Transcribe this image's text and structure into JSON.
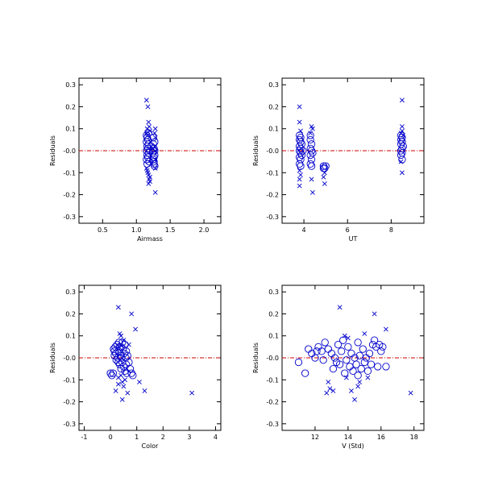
{
  "marker_color": "#0000cc",
  "zero_line_color": "#cc0000",
  "chart_data": [
    {
      "type": "scatter",
      "xlabel": "Airmass",
      "ylabel": "Residuals",
      "xlim": [
        0.15,
        2.25
      ],
      "ylim": [
        -0.33,
        0.33
      ],
      "xticks": [
        0.5,
        1.0,
        1.5,
        2.0
      ],
      "xtick_labels": [
        "0.5",
        "1.0",
        "1.5",
        "2.0"
      ],
      "yticks": [
        -0.3,
        -0.2,
        -0.1,
        0.0,
        0.1,
        0.2,
        0.3
      ],
      "ytick_labels": [
        "-0.3",
        "-0.2",
        "-0.1",
        "-0.0",
        "0.1",
        "0.2",
        "0.3"
      ],
      "series": [
        {
          "marker": "circle",
          "points": [
            [
              1.15,
              0.07
            ],
            [
              1.16,
              0.06
            ],
            [
              1.17,
              0.05
            ],
            [
              1.15,
              0.04
            ],
            [
              1.18,
              0.03
            ],
            [
              1.16,
              0.02
            ],
            [
              1.17,
              0.01
            ],
            [
              1.15,
              0.0
            ],
            [
              1.18,
              -0.01
            ],
            [
              1.16,
              -0.02
            ],
            [
              1.17,
              -0.03
            ],
            [
              1.15,
              -0.04
            ],
            [
              1.19,
              -0.05
            ],
            [
              1.16,
              -0.06
            ],
            [
              1.18,
              0.08
            ],
            [
              1.2,
              0.0
            ],
            [
              1.22,
              0.02
            ],
            [
              1.24,
              -0.01
            ],
            [
              1.25,
              0.0
            ],
            [
              1.25,
              0.03
            ],
            [
              1.26,
              -0.03
            ],
            [
              1.27,
              0.04
            ],
            [
              1.26,
              -0.05
            ],
            [
              1.27,
              -0.07
            ],
            [
              1.25,
              -0.04
            ],
            [
              1.26,
              0.01
            ],
            [
              1.27,
              -0.02
            ],
            [
              1.25,
              0.06
            ],
            [
              1.26,
              -0.06
            ],
            [
              1.27,
              0.0
            ]
          ]
        },
        {
          "marker": "x",
          "points": [
            [
              1.15,
              0.23
            ],
            [
              1.17,
              0.2
            ],
            [
              1.18,
              0.13
            ],
            [
              1.19,
              0.11
            ],
            [
              1.16,
              0.1
            ],
            [
              1.15,
              0.08
            ],
            [
              1.17,
              0.07
            ],
            [
              1.15,
              -0.08
            ],
            [
              1.16,
              -0.09
            ],
            [
              1.17,
              -0.1
            ],
            [
              1.18,
              -0.11
            ],
            [
              1.2,
              -0.12
            ],
            [
              1.18,
              -0.15
            ],
            [
              1.2,
              -0.14
            ],
            [
              1.28,
              -0.19
            ],
            [
              1.28,
              0.1
            ],
            [
              1.27,
              0.08
            ],
            [
              1.28,
              0.06
            ],
            [
              1.28,
              -0.08
            ],
            [
              1.27,
              0.02
            ],
            [
              1.28,
              -0.04
            ],
            [
              1.19,
              -0.13
            ],
            [
              1.2,
              0.09
            ],
            [
              1.22,
              -0.06
            ],
            [
              1.28,
              0.0
            ]
          ]
        }
      ]
    },
    {
      "type": "scatter",
      "xlabel": "UT",
      "ylabel": "Residuals",
      "xlim": [
        3.0,
        9.5
      ],
      "ylim": [
        -0.33,
        0.33
      ],
      "xticks": [
        4,
        6,
        8
      ],
      "xtick_labels": [
        "4",
        "6",
        "8"
      ],
      "yticks": [
        -0.3,
        -0.2,
        -0.1,
        0.0,
        0.1,
        0.2,
        0.3
      ],
      "ytick_labels": [
        "-0.3",
        "-0.2",
        "-0.1",
        "-0.0",
        "0.1",
        "0.2",
        "0.3"
      ],
      "series": [
        {
          "marker": "circle",
          "points": [
            [
              3.8,
              0.07
            ],
            [
              3.85,
              0.06
            ],
            [
              3.8,
              0.05
            ],
            [
              3.85,
              0.04
            ],
            [
              3.8,
              0.02
            ],
            [
              3.85,
              0.01
            ],
            [
              3.8,
              0.0
            ],
            [
              3.85,
              -0.01
            ],
            [
              3.8,
              -0.03
            ],
            [
              3.85,
              -0.04
            ],
            [
              3.8,
              -0.06
            ],
            [
              3.85,
              -0.07
            ],
            [
              3.9,
              0.03
            ],
            [
              3.9,
              -0.02
            ],
            [
              3.95,
              0.0
            ],
            [
              4.3,
              0.05
            ],
            [
              4.35,
              0.03
            ],
            [
              4.3,
              0.01
            ],
            [
              4.35,
              0.0
            ],
            [
              4.3,
              -0.02
            ],
            [
              4.35,
              -0.04
            ],
            [
              4.3,
              -0.06
            ],
            [
              4.35,
              -0.07
            ],
            [
              4.3,
              0.07
            ],
            [
              4.4,
              -0.01
            ],
            [
              4.9,
              -0.07
            ],
            [
              4.95,
              -0.08
            ],
            [
              5.0,
              -0.07
            ],
            [
              4.9,
              -0.08
            ],
            [
              8.45,
              0.07
            ],
            [
              8.5,
              0.06
            ],
            [
              8.45,
              0.05
            ],
            [
              8.5,
              0.04
            ],
            [
              8.45,
              0.03
            ],
            [
              8.5,
              0.01
            ],
            [
              8.45,
              0.0
            ],
            [
              8.5,
              -0.01
            ],
            [
              8.45,
              -0.02
            ],
            [
              8.5,
              -0.04
            ],
            [
              8.55,
              0.02
            ]
          ]
        },
        {
          "marker": "x",
          "points": [
            [
              3.8,
              0.2
            ],
            [
              3.8,
              0.13
            ],
            [
              3.85,
              0.09
            ],
            [
              3.8,
              -0.09
            ],
            [
              3.85,
              -0.11
            ],
            [
              3.8,
              -0.13
            ],
            [
              3.8,
              -0.16
            ],
            [
              4.4,
              -0.19
            ],
            [
              4.35,
              -0.13
            ],
            [
              4.35,
              0.11
            ],
            [
              4.4,
              0.1
            ],
            [
              4.3,
              0.08
            ],
            [
              4.95,
              -0.15
            ],
            [
              4.95,
              -0.1
            ],
            [
              4.9,
              -0.12
            ],
            [
              8.5,
              0.23
            ],
            [
              8.5,
              0.11
            ],
            [
              8.5,
              0.09
            ],
            [
              8.45,
              -0.05
            ],
            [
              8.5,
              -0.1
            ],
            [
              8.55,
              0.07
            ],
            [
              8.45,
              0.08
            ]
          ]
        }
      ]
    },
    {
      "type": "scatter",
      "xlabel": "Color",
      "ylabel": "Residuals",
      "xlim": [
        -1.2,
        4.2
      ],
      "ylim": [
        -0.33,
        0.33
      ],
      "xticks": [
        -1,
        0,
        1,
        2,
        3,
        4
      ],
      "xtick_labels": [
        "-1",
        "0",
        "1",
        "2",
        "3",
        "4"
      ],
      "yticks": [
        -0.3,
        -0.2,
        -0.1,
        0.0,
        0.1,
        0.2,
        0.3
      ],
      "ytick_labels": [
        "-0.3",
        "-0.2",
        "-0.1",
        "-0.0",
        "0.1",
        "0.2",
        "0.3"
      ],
      "series": [
        {
          "marker": "circle",
          "points": [
            [
              0.0,
              -0.07
            ],
            [
              0.05,
              -0.08
            ],
            [
              0.1,
              -0.07
            ],
            [
              0.12,
              0.04
            ],
            [
              0.15,
              0.03
            ],
            [
              0.15,
              0.01
            ],
            [
              0.18,
              0.05
            ],
            [
              0.2,
              0.02
            ],
            [
              0.22,
              -0.01
            ],
            [
              0.25,
              0.06
            ],
            [
              0.28,
              0.0
            ],
            [
              0.3,
              -0.02
            ],
            [
              0.3,
              0.03
            ],
            [
              0.32,
              0.07
            ],
            [
              0.35,
              -0.03
            ],
            [
              0.38,
              0.01
            ],
            [
              0.4,
              -0.05
            ],
            [
              0.4,
              0.05
            ],
            [
              0.42,
              0.0
            ],
            [
              0.45,
              -0.02
            ],
            [
              0.48,
              0.04
            ],
            [
              0.5,
              -0.04
            ],
            [
              0.52,
              0.02
            ],
            [
              0.55,
              0.06
            ],
            [
              0.55,
              -0.06
            ],
            [
              0.58,
              0.0
            ],
            [
              0.6,
              -0.03
            ],
            [
              0.6,
              0.03
            ],
            [
              0.62,
              -0.07
            ],
            [
              0.65,
              0.01
            ],
            [
              0.7,
              -0.02
            ],
            [
              0.75,
              -0.05
            ],
            [
              0.8,
              -0.07
            ],
            [
              0.85,
              -0.08
            ],
            [
              0.35,
              0.05
            ],
            [
              0.45,
              0.07
            ]
          ]
        },
        {
          "marker": "x",
          "points": [
            [
              0.3,
              0.23
            ],
            [
              0.8,
              0.2
            ],
            [
              0.95,
              0.13
            ],
            [
              0.35,
              0.11
            ],
            [
              0.4,
              0.1
            ],
            [
              0.5,
              0.08
            ],
            [
              0.3,
              -0.09
            ],
            [
              0.45,
              -0.11
            ],
            [
              0.3,
              -0.12
            ],
            [
              0.2,
              -0.15
            ],
            [
              0.45,
              -0.19
            ],
            [
              0.65,
              -0.16
            ],
            [
              0.5,
              -0.13
            ],
            [
              1.1,
              -0.11
            ],
            [
              1.3,
              -0.15
            ],
            [
              3.1,
              -0.16
            ],
            [
              0.7,
              0.06
            ],
            [
              0.4,
              -0.08
            ],
            [
              0.55,
              -0.1
            ]
          ]
        }
      ]
    },
    {
      "type": "scatter",
      "xlabel": "V (Std)",
      "ylabel": "Residuals",
      "xlim": [
        10.0,
        18.6
      ],
      "ylim": [
        -0.33,
        0.33
      ],
      "xticks": [
        12,
        14,
        16,
        18
      ],
      "xtick_labels": [
        "12",
        "14",
        "16",
        "18"
      ],
      "yticks": [
        -0.3,
        -0.2,
        -0.1,
        0.0,
        0.1,
        0.2,
        0.3
      ],
      "ytick_labels": [
        "-0.3",
        "-0.2",
        "-0.1",
        "-0.0",
        "0.1",
        "0.2",
        "0.3"
      ],
      "series": [
        {
          "marker": "circle",
          "points": [
            [
              11.0,
              -0.02
            ],
            [
              11.4,
              -0.07
            ],
            [
              11.6,
              0.04
            ],
            [
              11.8,
              0.02
            ],
            [
              12.0,
              0.0
            ],
            [
              12.2,
              0.05
            ],
            [
              12.4,
              0.03
            ],
            [
              12.5,
              -0.01
            ],
            [
              12.6,
              0.07
            ],
            [
              12.8,
              0.04
            ],
            [
              13.0,
              0.02
            ],
            [
              13.1,
              -0.05
            ],
            [
              13.2,
              0.0
            ],
            [
              13.4,
              0.06
            ],
            [
              13.5,
              -0.03
            ],
            [
              13.6,
              0.03
            ],
            [
              13.7,
              0.08
            ],
            [
              13.8,
              -0.07
            ],
            [
              13.9,
              -0.01
            ],
            [
              14.0,
              0.05
            ],
            [
              14.1,
              -0.04
            ],
            [
              14.2,
              0.02
            ],
            [
              14.3,
              -0.06
            ],
            [
              14.4,
              0.0
            ],
            [
              14.5,
              -0.03
            ],
            [
              14.6,
              0.07
            ],
            [
              14.7,
              0.01
            ],
            [
              14.8,
              -0.05
            ],
            [
              14.9,
              0.04
            ],
            [
              15.0,
              -0.02
            ],
            [
              15.1,
              0.0
            ],
            [
              15.2,
              -0.06
            ],
            [
              15.3,
              0.02
            ],
            [
              15.4,
              -0.03
            ],
            [
              15.5,
              0.06
            ],
            [
              15.6,
              0.08
            ],
            [
              15.7,
              0.05
            ],
            [
              15.8,
              -0.04
            ],
            [
              15.9,
              0.06
            ],
            [
              16.0,
              0.03
            ],
            [
              16.1,
              0.05
            ],
            [
              16.3,
              -0.04
            ],
            [
              12.1,
              0.03
            ],
            [
              13.3,
              -0.02
            ],
            [
              14.6,
              -0.08
            ]
          ]
        },
        {
          "marker": "x",
          "points": [
            [
              13.5,
              0.23
            ],
            [
              15.6,
              0.2
            ],
            [
              16.3,
              0.13
            ],
            [
              15.0,
              0.11
            ],
            [
              13.8,
              0.1
            ],
            [
              14.0,
              0.09
            ],
            [
              12.8,
              -0.11
            ],
            [
              12.9,
              -0.14
            ],
            [
              12.7,
              -0.16
            ],
            [
              13.1,
              -0.15
            ],
            [
              14.2,
              -0.15
            ],
            [
              14.4,
              -0.19
            ],
            [
              14.6,
              -0.13
            ],
            [
              15.2,
              -0.09
            ],
            [
              17.8,
              -0.16
            ],
            [
              14.7,
              -0.11
            ],
            [
              13.9,
              -0.09
            ]
          ]
        }
      ]
    }
  ]
}
